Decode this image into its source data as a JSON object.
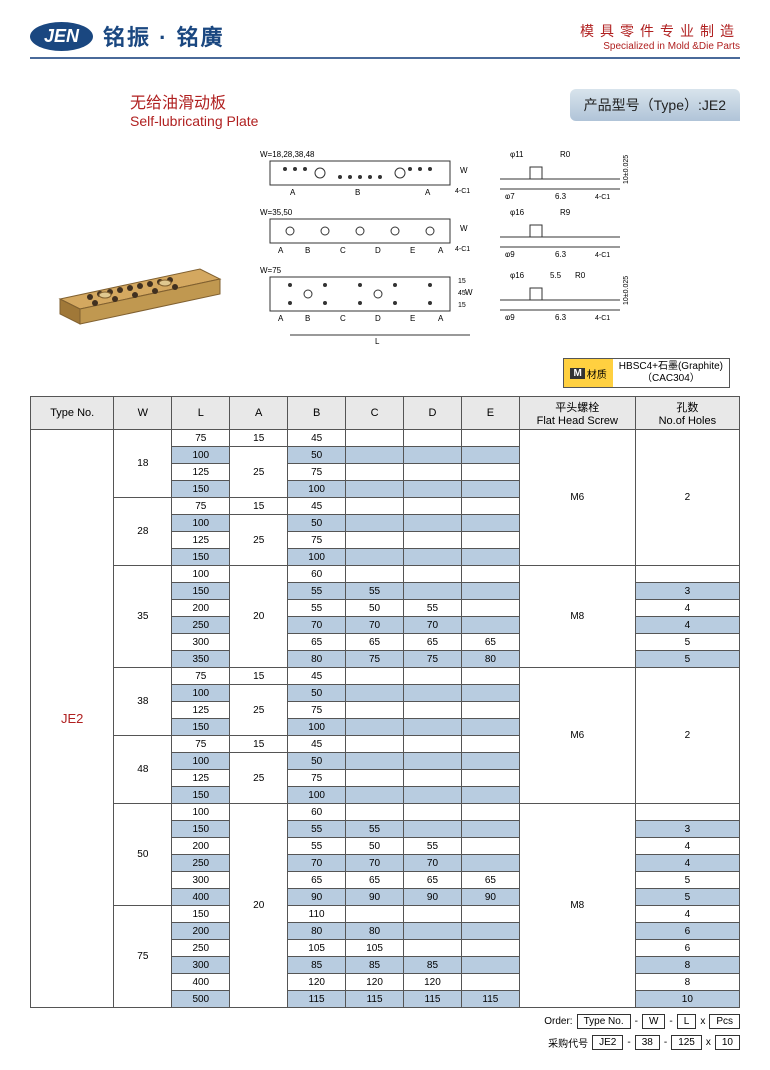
{
  "header": {
    "logo": "JEN",
    "logo_cn": "铭振 · 铭廣",
    "tagline_cn": "模具零件专业制造",
    "tagline_en": "Specialized in Mold &Die Parts"
  },
  "title": {
    "cn": "无给油滑动板",
    "en": "Self-lubricating Plate",
    "type_label": "产品型号（Type）:JE2"
  },
  "diagram_labels": {
    "w1": "W=18,28,38,48",
    "w2": "W=35,50",
    "w3": "W=75",
    "sections": [
      "A",
      "B",
      "A"
    ],
    "sections2": [
      "A",
      "B",
      "C",
      "D",
      "E",
      "A"
    ],
    "dim_L": "L",
    "dim_W": "W",
    "chamfer": "4-C1",
    "phi11": "φ11",
    "phi7": "φ7",
    "phi16": "φ16",
    "phi9": "φ9",
    "r9": "R9",
    "r0": "R0",
    "t10": "10±0.025",
    "d63": "6.3",
    "d55": "5.5",
    "d15": "15",
    "d45": "45"
  },
  "material": {
    "badge": "M",
    "label": "材质",
    "text1": "HBSC4+石墨(Graphite)",
    "text2": "（CAC304）"
  },
  "columns": {
    "type": "Type No.",
    "w": "W",
    "l": "L",
    "a": "A",
    "b": "B",
    "c": "C",
    "d": "D",
    "e": "E",
    "screw_cn": "平头螺栓",
    "screw_en": "Flat Head Screw",
    "holes_cn": "孔数",
    "holes_en": "No.of Holes"
  },
  "type_value": "JE2",
  "rows": [
    {
      "shade": 0,
      "W": "18",
      "Wspan": 4,
      "L": "75",
      "A": "15",
      "Aspan": 1,
      "B": "45",
      "C": "",
      "D": "",
      "E": "",
      "screw": "M6",
      "screwSpan": 8,
      "holes": "2",
      "holesSpan": 8
    },
    {
      "shade": 1,
      "L": "100",
      "A": "25",
      "Aspan": 3,
      "B": "50",
      "C": "",
      "D": "",
      "E": ""
    },
    {
      "shade": 0,
      "L": "125",
      "B": "75",
      "C": "",
      "D": "",
      "E": ""
    },
    {
      "shade": 1,
      "L": "150",
      "B": "100",
      "C": "",
      "D": "",
      "E": ""
    },
    {
      "shade": 0,
      "W": "28",
      "Wspan": 4,
      "L": "75",
      "A": "15",
      "Aspan": 1,
      "B": "45",
      "C": "",
      "D": "",
      "E": ""
    },
    {
      "shade": 1,
      "L": "100",
      "A": "25",
      "Aspan": 3,
      "B": "50",
      "C": "",
      "D": "",
      "E": ""
    },
    {
      "shade": 0,
      "L": "125",
      "B": "75",
      "C": "",
      "D": "",
      "E": ""
    },
    {
      "shade": 1,
      "L": "150",
      "B": "100",
      "C": "",
      "D": "",
      "E": ""
    },
    {
      "shade": 0,
      "W": "35",
      "Wspan": 6,
      "L": "100",
      "A": "20",
      "Aspan": 6,
      "B": "60",
      "C": "",
      "D": "",
      "E": "",
      "screw": "M8",
      "screwSpan": 6,
      "holes": "",
      "holesSpan": 1
    },
    {
      "shade": 1,
      "L": "150",
      "B": "55",
      "C": "55",
      "D": "",
      "E": "",
      "holes": "3",
      "holesSpan": 1
    },
    {
      "shade": 0,
      "L": "200",
      "B": "55",
      "C": "50",
      "D": "55",
      "E": "",
      "holes": "4",
      "holesSpan": 1
    },
    {
      "shade": 1,
      "L": "250",
      "B": "70",
      "C": "70",
      "D": "70",
      "E": "",
      "holes": "4",
      "holesSpan": 1
    },
    {
      "shade": 0,
      "L": "300",
      "B": "65",
      "C": "65",
      "D": "65",
      "E": "65",
      "holes": "5",
      "holesSpan": 1
    },
    {
      "shade": 1,
      "L": "350",
      "B": "80",
      "C": "75",
      "D": "75",
      "E": "80",
      "holes": "5",
      "holesSpan": 1
    },
    {
      "shade": 0,
      "W": "38",
      "Wspan": 4,
      "L": "75",
      "A": "15",
      "Aspan": 1,
      "B": "45",
      "C": "",
      "D": "",
      "E": "",
      "screw": "M6",
      "screwSpan": 8,
      "holes": "2",
      "holesSpan": 8
    },
    {
      "shade": 1,
      "L": "100",
      "A": "25",
      "Aspan": 3,
      "B": "50",
      "C": "",
      "D": "",
      "E": ""
    },
    {
      "shade": 0,
      "L": "125",
      "B": "75",
      "C": "",
      "D": "",
      "E": ""
    },
    {
      "shade": 1,
      "L": "150",
      "B": "100",
      "C": "",
      "D": "",
      "E": ""
    },
    {
      "shade": 0,
      "W": "48",
      "Wspan": 4,
      "L": "75",
      "A": "15",
      "Aspan": 1,
      "B": "45",
      "C": "",
      "D": "",
      "E": ""
    },
    {
      "shade": 1,
      "L": "100",
      "A": "25",
      "Aspan": 3,
      "B": "50",
      "C": "",
      "D": "",
      "E": ""
    },
    {
      "shade": 0,
      "L": "125",
      "B": "75",
      "C": "",
      "D": "",
      "E": ""
    },
    {
      "shade": 1,
      "L": "150",
      "B": "100",
      "C": "",
      "D": "",
      "E": ""
    },
    {
      "shade": 0,
      "W": "50",
      "Wspan": 6,
      "L": "100",
      "A": "20",
      "Aspan": 12,
      "B": "60",
      "C": "",
      "D": "",
      "E": "",
      "screw": "M8",
      "screwSpan": 12,
      "holes": "",
      "holesSpan": 1
    },
    {
      "shade": 1,
      "L": "150",
      "B": "55",
      "C": "55",
      "D": "",
      "E": "",
      "holes": "3",
      "holesSpan": 1
    },
    {
      "shade": 0,
      "L": "200",
      "B": "55",
      "C": "50",
      "D": "55",
      "E": "",
      "holes": "4",
      "holesSpan": 1
    },
    {
      "shade": 1,
      "L": "250",
      "B": "70",
      "C": "70",
      "D": "70",
      "E": "",
      "holes": "4",
      "holesSpan": 1
    },
    {
      "shade": 0,
      "L": "300",
      "B": "65",
      "C": "65",
      "D": "65",
      "E": "65",
      "holes": "5",
      "holesSpan": 1
    },
    {
      "shade": 1,
      "L": "400",
      "B": "90",
      "C": "90",
      "D": "90",
      "E": "90",
      "holes": "5",
      "holesSpan": 1
    },
    {
      "shade": 0,
      "W": "75",
      "Wspan": 6,
      "L": "150",
      "B": "110",
      "C": "",
      "D": "",
      "E": "",
      "holes": "4",
      "holesSpan": 1
    },
    {
      "shade": 1,
      "L": "200",
      "B": "80",
      "C": "80",
      "D": "",
      "E": "",
      "holes": "6",
      "holesSpan": 1
    },
    {
      "shade": 0,
      "L": "250",
      "B": "105",
      "C": "105",
      "D": "",
      "E": "",
      "holes": "6",
      "holesSpan": 1
    },
    {
      "shade": 1,
      "L": "300",
      "B": "85",
      "C": "85",
      "D": "85",
      "E": "",
      "holes": "8",
      "holesSpan": 1
    },
    {
      "shade": 0,
      "L": "400",
      "B": "120",
      "C": "120",
      "D": "120",
      "E": "",
      "holes": "8",
      "holesSpan": 1
    },
    {
      "shade": 1,
      "L": "500",
      "B": "115",
      "C": "115",
      "D": "115",
      "E": "115",
      "holes": "10",
      "holesSpan": 1
    }
  ],
  "order": {
    "label_en": "Order:",
    "label_cn": "采购代号",
    "f1": "Type No.",
    "f2": "W",
    "f3": "L",
    "f4": "Pcs",
    "v1": "JE2",
    "v2": "38",
    "v3": "125",
    "v4": "10",
    "sep": "-",
    "x": "x"
  },
  "colors": {
    "brand": "#1a4780",
    "accent": "#b02020",
    "shade": "#b8cce0",
    "gold": "#c9a050"
  }
}
